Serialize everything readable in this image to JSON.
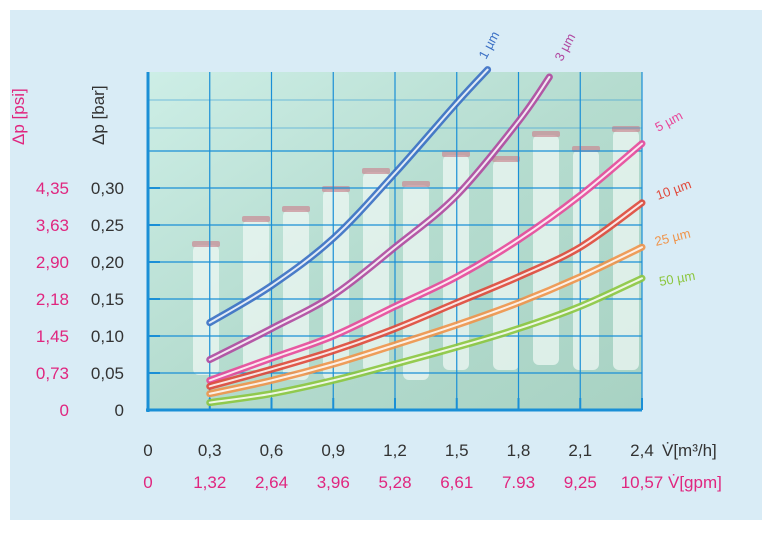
{
  "colors": {
    "background": "#d9ecf6",
    "plot_fill": "#b9e0d6",
    "grid": "#1a8fd6",
    "axis": "#1a8fd6",
    "primary_text": "#333333",
    "secondary_text": "#e0267f"
  },
  "chart_data": {
    "type": "line",
    "title": "",
    "y_primary": {
      "label": "Δp [bar]",
      "min": 0,
      "max": 0.45,
      "tick_values": [
        0,
        0.05,
        0.1,
        0.15,
        0.2,
        0.25,
        0.3
      ],
      "tick_labels": [
        "0",
        "0,05",
        "0,10",
        "0,15",
        "0,20",
        "0,25",
        "0,30"
      ]
    },
    "y_secondary": {
      "label": "Δp [psi]",
      "tick_labels": [
        "0",
        "0,73",
        "1,45",
        "2,18",
        "2,90",
        "3,63",
        "4,35"
      ]
    },
    "x_primary": {
      "label": "V̇[m³/h]",
      "min": 0,
      "max": 2.4,
      "tick_values": [
        0,
        0.3,
        0.6,
        0.9,
        1.2,
        1.5,
        1.8,
        2.1,
        2.4
      ],
      "tick_labels": [
        "0",
        "0,3",
        "0,6",
        "0,9",
        "1,2",
        "1,5",
        "1,8",
        "2,1",
        "2,4"
      ]
    },
    "x_secondary": {
      "label": "V̇[gpm]",
      "tick_labels": [
        "0",
        "1,32",
        "2,64",
        "3,96",
        "5,28",
        "6,61",
        "7.93",
        "9,25",
        "10,57"
      ]
    },
    "grid": true,
    "series": [
      {
        "name": "1 µm",
        "color": "#3a6fc4",
        "points": [
          [
            0.3,
            0.118
          ],
          [
            0.6,
            0.168
          ],
          [
            0.9,
            0.232
          ],
          [
            1.2,
            0.32
          ],
          [
            1.5,
            0.415
          ],
          [
            1.65,
            0.46
          ]
        ]
      },
      {
        "name": "3 µm",
        "color": "#b048a0",
        "points": [
          [
            0.3,
            0.068
          ],
          [
            0.6,
            0.11
          ],
          [
            0.9,
            0.155
          ],
          [
            1.2,
            0.22
          ],
          [
            1.5,
            0.29
          ],
          [
            1.8,
            0.39
          ],
          [
            1.95,
            0.45
          ]
        ]
      },
      {
        "name": "5 µm",
        "color": "#e8489a",
        "points": [
          [
            0.3,
            0.04
          ],
          [
            0.6,
            0.07
          ],
          [
            0.9,
            0.1
          ],
          [
            1.2,
            0.14
          ],
          [
            1.5,
            0.18
          ],
          [
            1.8,
            0.23
          ],
          [
            2.1,
            0.29
          ],
          [
            2.4,
            0.36
          ]
        ]
      },
      {
        "name": "10 µm",
        "color": "#e0483a",
        "points": [
          [
            0.3,
            0.032
          ],
          [
            0.6,
            0.055
          ],
          [
            0.9,
            0.08
          ],
          [
            1.2,
            0.11
          ],
          [
            1.5,
            0.145
          ],
          [
            1.8,
            0.18
          ],
          [
            2.1,
            0.22
          ],
          [
            2.4,
            0.28
          ]
        ]
      },
      {
        "name": "25 µm",
        "color": "#f0944a",
        "points": [
          [
            0.3,
            0.022
          ],
          [
            0.6,
            0.04
          ],
          [
            0.9,
            0.062
          ],
          [
            1.2,
            0.088
          ],
          [
            1.5,
            0.115
          ],
          [
            1.8,
            0.145
          ],
          [
            2.1,
            0.18
          ],
          [
            2.4,
            0.22
          ]
        ]
      },
      {
        "name": "50 µm",
        "color": "#8cc63f",
        "points": [
          [
            0.3,
            0.01
          ],
          [
            0.6,
            0.022
          ],
          [
            0.9,
            0.04
          ],
          [
            1.2,
            0.062
          ],
          [
            1.5,
            0.085
          ],
          [
            1.8,
            0.11
          ],
          [
            2.1,
            0.14
          ],
          [
            2.4,
            0.178
          ]
        ]
      }
    ]
  }
}
